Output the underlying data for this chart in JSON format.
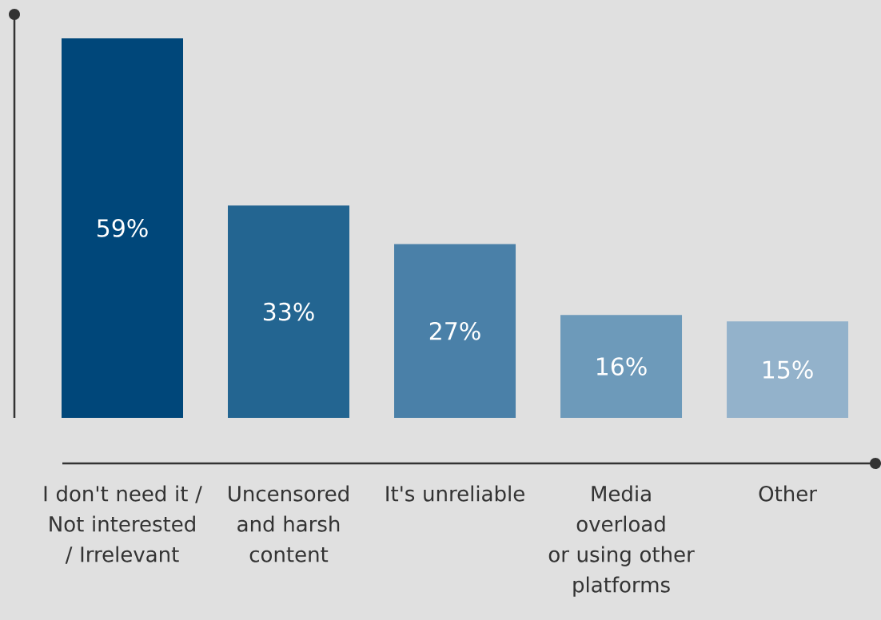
{
  "chart_data": {
    "type": "bar",
    "categories": [
      "I don't need it / Not interested / Irrelevant",
      "Uncensored and harsh content",
      "It's unreliable",
      "Media overload or using other platforms",
      "Other"
    ],
    "values": [
      59,
      33,
      27,
      16,
      15
    ],
    "colors": [
      "#00477a",
      "#236591",
      "#4a80a8",
      "#6d9aba",
      "#93b2cb"
    ],
    "value_labels": [
      "59%",
      "33%",
      "27%",
      "16%",
      "15%"
    ]
  }
}
